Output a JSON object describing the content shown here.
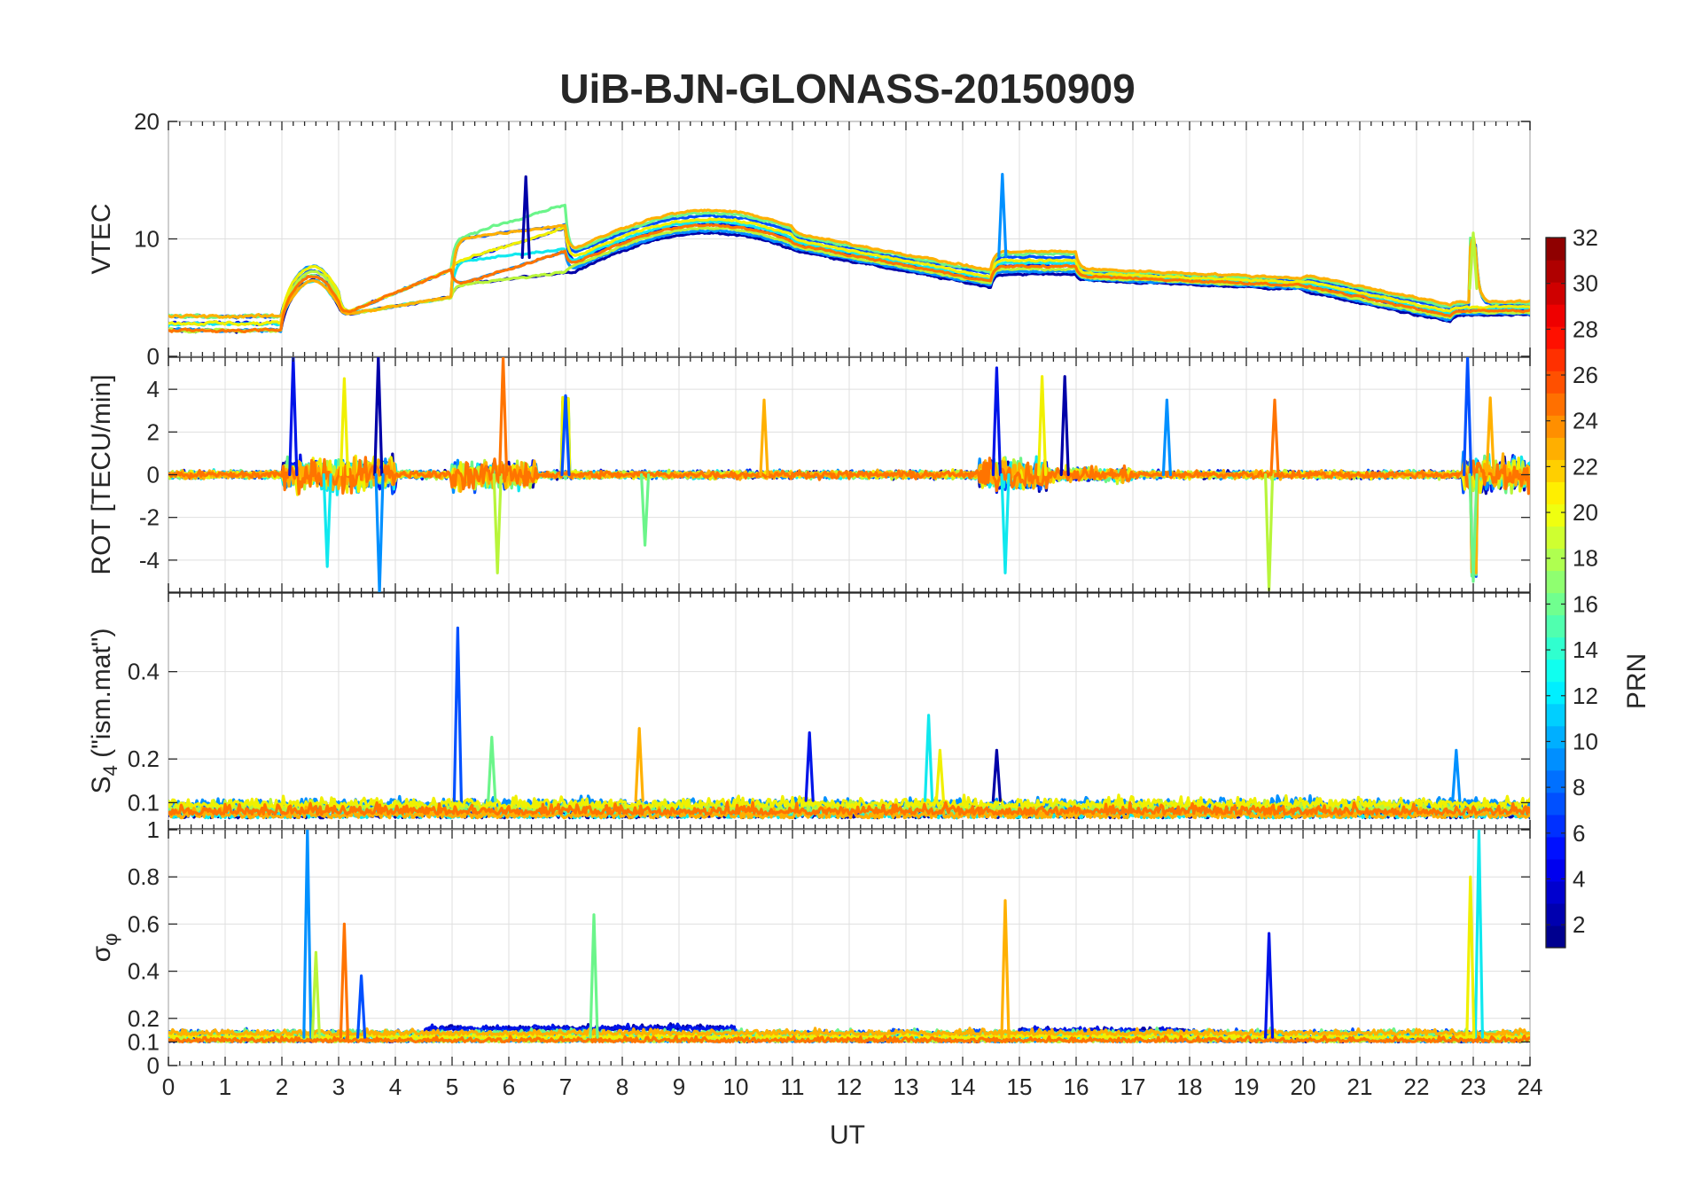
{
  "chart_data": {
    "type": "line",
    "title": "UiB-BJN-GLONASS-20150909",
    "xlabel": "UT",
    "xlim": [
      0,
      24
    ],
    "x_ticks": [
      "0",
      "1",
      "2",
      "3",
      "4",
      "5",
      "6",
      "7",
      "8",
      "9",
      "10",
      "11",
      "12",
      "13",
      "14",
      "15",
      "16",
      "17",
      "18",
      "19",
      "20",
      "21",
      "22",
      "23",
      "24"
    ],
    "panels": [
      {
        "name": "vtec",
        "ylabel": "VTEC",
        "ylim": [
          0,
          20
        ],
        "y_ticks": [
          "0",
          "10",
          "20"
        ],
        "y_tick_values": [
          0,
          10,
          20
        ],
        "activity_events": [
          {
            "t": 6.3,
            "v": 15.3
          },
          {
            "t": 14.7,
            "v": 15.5
          },
          {
            "t": 23.0,
            "v": 10.5
          }
        ]
      },
      {
        "name": "rot",
        "ylabel": "ROT [TECU/min]",
        "ylim": [
          -5.5,
          5.5
        ],
        "y_ticks": [
          "-4",
          "-2",
          "0",
          "2",
          "4"
        ],
        "y_tick_values": [
          -4,
          -2,
          0,
          2,
          4
        ],
        "activity_events": [
          {
            "t": 2.2,
            "v": 5.5
          },
          {
            "t": 2.8,
            "v": -4.3
          },
          {
            "t": 3.1,
            "v": 4.5
          },
          {
            "t": 3.7,
            "v": 5.5
          },
          {
            "t": 3.72,
            "v": -5.5
          },
          {
            "t": 5.8,
            "v": -4.6
          },
          {
            "t": 5.9,
            "v": 5.5
          },
          {
            "t": 7.0,
            "v": 3.7
          },
          {
            "t": 8.4,
            "v": -3.3
          },
          {
            "t": 10.5,
            "v": 3.5
          },
          {
            "t": 14.6,
            "v": 5.0
          },
          {
            "t": 14.75,
            "v": -4.6
          },
          {
            "t": 15.4,
            "v": 4.6
          },
          {
            "t": 15.8,
            "v": 4.6
          },
          {
            "t": 17.6,
            "v": 3.5
          },
          {
            "t": 19.4,
            "v": -5.4
          },
          {
            "t": 19.5,
            "v": 3.5
          },
          {
            "t": 22.9,
            "v": 5.5
          },
          {
            "t": 23.0,
            "v": -5.0
          },
          {
            "t": 23.3,
            "v": 3.6
          }
        ]
      },
      {
        "name": "s4",
        "ylabel": "S4 (\"ism.mat\")",
        "ylabel_main": "S",
        "ylabel_sub": "4",
        "ylabel_rest": " (\"ism.mat\")",
        "ylim": [
          0.04,
          0.58
        ],
        "y_ticks": [
          "0.1",
          "0.2",
          "0.4"
        ],
        "y_tick_values": [
          0.1,
          0.2,
          0.4
        ],
        "activity_events": [
          {
            "t": 5.1,
            "v": 0.5
          },
          {
            "t": 5.7,
            "v": 0.25
          },
          {
            "t": 8.3,
            "v": 0.27
          },
          {
            "t": 11.3,
            "v": 0.26
          },
          {
            "t": 13.4,
            "v": 0.3
          },
          {
            "t": 13.6,
            "v": 0.22
          },
          {
            "t": 14.6,
            "v": 0.22
          },
          {
            "t": 22.7,
            "v": 0.22
          }
        ]
      },
      {
        "name": "sigma_phi",
        "ylabel": "σφ",
        "ylabel_main": "σ",
        "ylabel_sub": "φ",
        "ylim": [
          0,
          1
        ],
        "y_ticks": [
          "0",
          "0.1",
          "0.2",
          "0.4",
          "0.6",
          "0.8",
          "1"
        ],
        "y_tick_values": [
          0,
          0.1,
          0.2,
          0.4,
          0.6,
          0.8,
          1
        ],
        "activity_events": [
          {
            "t": 2.45,
            "v": 1.0
          },
          {
            "t": 2.6,
            "v": 0.48
          },
          {
            "t": 3.1,
            "v": 0.6
          },
          {
            "t": 3.4,
            "v": 0.38
          },
          {
            "t": 7.5,
            "v": 0.64
          },
          {
            "t": 14.75,
            "v": 0.7
          },
          {
            "t": 19.4,
            "v": 0.56
          },
          {
            "t": 23.1,
            "v": 1.0
          },
          {
            "t": 22.95,
            "v": 0.8
          }
        ]
      }
    ],
    "series": [
      {
        "prn": 1,
        "color": "#0000a8"
      },
      {
        "prn": 3,
        "color": "#0014e8"
      },
      {
        "prn": 6,
        "color": "#0050ff"
      },
      {
        "prn": 9,
        "color": "#0090ff"
      },
      {
        "prn": 12,
        "color": "#10e8ee"
      },
      {
        "prn": 15,
        "color": "#6bf58a"
      },
      {
        "prn": 17,
        "color": "#b8f53a"
      },
      {
        "prn": 20,
        "color": "#f0f000"
      },
      {
        "prn": 22,
        "color": "#ffb000"
      },
      {
        "prn": 24,
        "color": "#ff7400"
      }
    ],
    "colorbar": {
      "label": "PRN",
      "range": [
        1,
        32
      ],
      "ticks": [
        "2",
        "4",
        "6",
        "8",
        "10",
        "12",
        "14",
        "16",
        "18",
        "20",
        "22",
        "24",
        "26",
        "28",
        "30",
        "32"
      ],
      "tick_values": [
        2,
        4,
        6,
        8,
        10,
        12,
        14,
        16,
        18,
        20,
        22,
        24,
        26,
        28,
        30,
        32
      ],
      "colormap": "jet",
      "levels": 32
    }
  }
}
